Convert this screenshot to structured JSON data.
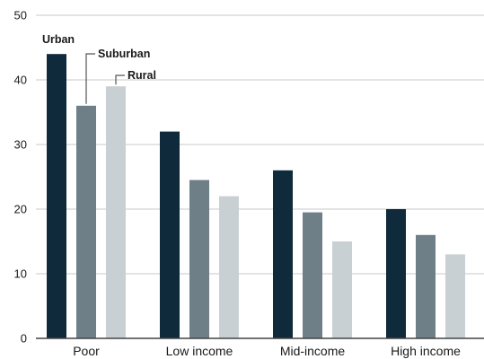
{
  "chart_data": {
    "type": "bar",
    "categories": [
      "Poor",
      "Low income",
      "Mid-income",
      "High income"
    ],
    "series": [
      {
        "name": "Urban",
        "color": "#0f2a3a",
        "values": [
          44,
          32,
          26,
          20
        ]
      },
      {
        "name": "Suburban",
        "color": "#6e7f88",
        "values": [
          36,
          24.5,
          19.5,
          16
        ]
      },
      {
        "name": "Rural",
        "color": "#c9d0d4",
        "values": [
          39,
          22,
          15,
          13
        ]
      }
    ],
    "ylim": [
      0,
      50
    ],
    "yticks": [
      0,
      10,
      20,
      30,
      40,
      50
    ],
    "grid": true,
    "legend": "inline-labels"
  }
}
